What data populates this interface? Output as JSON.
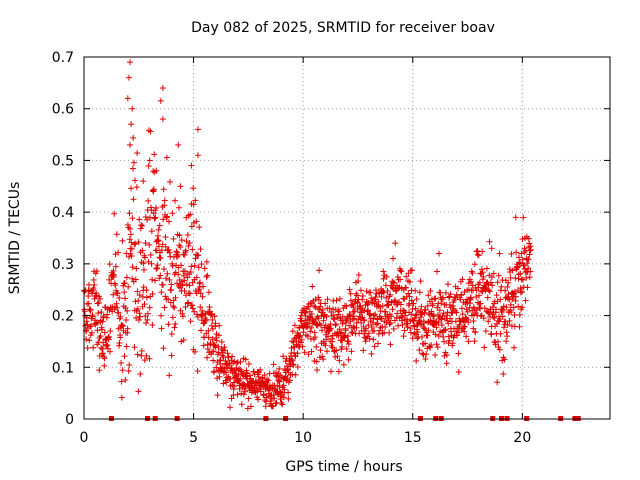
{
  "chart_data": {
    "type": "scatter",
    "title": "Day 082 of 2025, SRMTID for receiver boav",
    "xlabel": "GPS time / hours",
    "ylabel": "SRMTID / TECUs",
    "xlim": [
      0,
      24
    ],
    "ylim": [
      0,
      0.7
    ],
    "xticks": [
      "0",
      "5",
      "10",
      "15",
      "20"
    ],
    "yticks": [
      "0",
      "0.1",
      "0.2",
      "0.3",
      "0.4",
      "0.5",
      "0.6",
      "0.7"
    ],
    "grid": true,
    "marker": "+",
    "series_color": "#e00000",
    "series_name": "SRMTID",
    "trend": [
      [
        0.0,
        0.22
      ],
      [
        0.3,
        0.2
      ],
      [
        0.5,
        0.24
      ],
      [
        0.7,
        0.17
      ],
      [
        1.0,
        0.16
      ],
      [
        1.3,
        0.24
      ],
      [
        1.5,
        0.26
      ],
      [
        1.7,
        0.14
      ],
      [
        1.9,
        0.22
      ],
      [
        2.1,
        0.35
      ],
      [
        2.4,
        0.3
      ],
      [
        2.7,
        0.28
      ],
      [
        3.0,
        0.32
      ],
      [
        3.3,
        0.36
      ],
      [
        3.7,
        0.3
      ],
      [
        4.0,
        0.26
      ],
      [
        4.3,
        0.28
      ],
      [
        4.6,
        0.25
      ],
      [
        5.0,
        0.28
      ],
      [
        5.3,
        0.23
      ],
      [
        5.6,
        0.19
      ],
      [
        6.0,
        0.14
      ],
      [
        6.3,
        0.11
      ],
      [
        6.6,
        0.09
      ],
      [
        7.0,
        0.08
      ],
      [
        7.5,
        0.07
      ],
      [
        8.0,
        0.07
      ],
      [
        8.3,
        0.06
      ],
      [
        8.6,
        0.05
      ],
      [
        9.0,
        0.06
      ],
      [
        9.3,
        0.08
      ],
      [
        9.6,
        0.14
      ],
      [
        10.0,
        0.18
      ],
      [
        10.5,
        0.19
      ],
      [
        11.0,
        0.18
      ],
      [
        11.5,
        0.17
      ],
      [
        12.0,
        0.18
      ],
      [
        12.5,
        0.21
      ],
      [
        13.0,
        0.2
      ],
      [
        13.5,
        0.21
      ],
      [
        14.0,
        0.22
      ],
      [
        14.4,
        0.24
      ],
      [
        14.8,
        0.22
      ],
      [
        15.2,
        0.19
      ],
      [
        15.6,
        0.17
      ],
      [
        16.0,
        0.18
      ],
      [
        16.4,
        0.2
      ],
      [
        16.8,
        0.2
      ],
      [
        17.2,
        0.21
      ],
      [
        17.6,
        0.22
      ],
      [
        18.0,
        0.24
      ],
      [
        18.4,
        0.24
      ],
      [
        18.8,
        0.2
      ],
      [
        19.2,
        0.2
      ],
      [
        19.6,
        0.24
      ],
      [
        20.0,
        0.28
      ],
      [
        20.4,
        0.31
      ]
    ],
    "spread": [
      [
        0.0,
        0.06
      ],
      [
        1.5,
        0.08
      ],
      [
        2.2,
        0.22
      ],
      [
        3.5,
        0.16
      ],
      [
        4.5,
        0.12
      ],
      [
        5.2,
        0.12
      ],
      [
        6.0,
        0.05
      ],
      [
        8.0,
        0.03
      ],
      [
        9.5,
        0.04
      ],
      [
        11.0,
        0.06
      ],
      [
        14.0,
        0.06
      ],
      [
        16.0,
        0.07
      ],
      [
        18.0,
        0.07
      ],
      [
        20.0,
        0.08
      ],
      [
        20.4,
        0.04
      ]
    ],
    "peaks": [
      [
        2.1,
        0.69
      ],
      [
        2.05,
        0.66
      ],
      [
        2.0,
        0.62
      ],
      [
        2.2,
        0.6
      ],
      [
        2.15,
        0.57
      ],
      [
        2.1,
        0.53
      ],
      [
        3.6,
        0.64
      ],
      [
        3.6,
        0.58
      ],
      [
        4.3,
        0.53
      ],
      [
        4.9,
        0.49
      ],
      [
        5.2,
        0.56
      ],
      [
        5.2,
        0.51
      ],
      [
        3.0,
        0.5
      ],
      [
        3.3,
        0.48
      ],
      [
        2.7,
        0.46
      ],
      [
        4.4,
        0.45
      ],
      [
        19.7,
        0.39
      ],
      [
        14.2,
        0.34
      ],
      [
        16.2,
        0.32
      ],
      [
        18.6,
        0.33
      ]
    ],
    "gap_markers_x": [
      1.25,
      2.9,
      3.25,
      4.25,
      8.3,
      9.2,
      15.35,
      16.05,
      16.3,
      18.65,
      19.05,
      19.3,
      20.2,
      21.75,
      22.4,
      22.55
    ]
  }
}
